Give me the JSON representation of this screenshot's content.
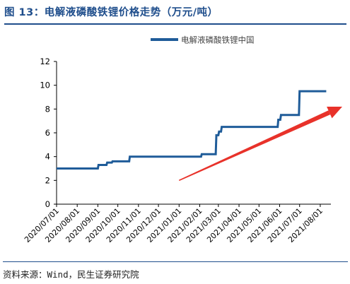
{
  "figure": {
    "title": "图 13：电解液磷酸铁锂价格走势（万元/吨）",
    "source": "资料来源：Wind，民生证券研究院"
  },
  "colors": {
    "series": "#1f5c99",
    "arrow": "#e8322a",
    "axis": "#000000",
    "title": "#1f4e8c"
  },
  "chart_data": {
    "type": "line",
    "legend_position": "top-right",
    "grid": false,
    "ylim": [
      0,
      12
    ],
    "yticks": [
      "0",
      "2",
      "4",
      "6",
      "8",
      "10",
      "12"
    ],
    "xticks": [
      "2020/07/01",
      "2020/08/01",
      "2020/09/01",
      "2020/10/01",
      "2020/11/01",
      "2020/12/01",
      "2021/01/01",
      "2021/02/01",
      "2021/03/01",
      "2021/04/01",
      "2021/05/01",
      "2021/06/01",
      "2021/07/01",
      "2021/08/01"
    ],
    "series": [
      {
        "name": "电解液磷酸铁锂中国",
        "step": true,
        "points": [
          [
            "2020-07-01",
            3.0
          ],
          [
            "2020-09-01",
            3.0
          ],
          [
            "2020-09-02",
            3.3
          ],
          [
            "2020-09-14",
            3.3
          ],
          [
            "2020-09-15",
            3.5
          ],
          [
            "2020-09-22",
            3.5
          ],
          [
            "2020-09-23",
            3.6
          ],
          [
            "2020-10-18",
            3.6
          ],
          [
            "2020-10-19",
            4.0
          ],
          [
            "2021-02-03",
            4.0
          ],
          [
            "2021-02-04",
            4.2
          ],
          [
            "2021-02-25",
            4.2
          ],
          [
            "2021-02-26",
            5.8
          ],
          [
            "2021-03-01",
            5.8
          ],
          [
            "2021-03-02",
            6.1
          ],
          [
            "2021-03-05",
            6.1
          ],
          [
            "2021-03-06",
            6.5
          ],
          [
            "2021-05-29",
            6.5
          ],
          [
            "2021-05-30",
            7.1
          ],
          [
            "2021-06-02",
            7.1
          ],
          [
            "2021-06-03",
            7.5
          ],
          [
            "2021-06-30",
            7.5
          ],
          [
            "2021-07-01",
            9.5
          ],
          [
            "2021-08-10",
            9.5
          ]
        ]
      }
    ],
    "annotation": {
      "type": "arrow",
      "from": [
        "2021-01-01",
        2.0
      ],
      "to": [
        "2021-08-17",
        8.2
      ]
    }
  }
}
